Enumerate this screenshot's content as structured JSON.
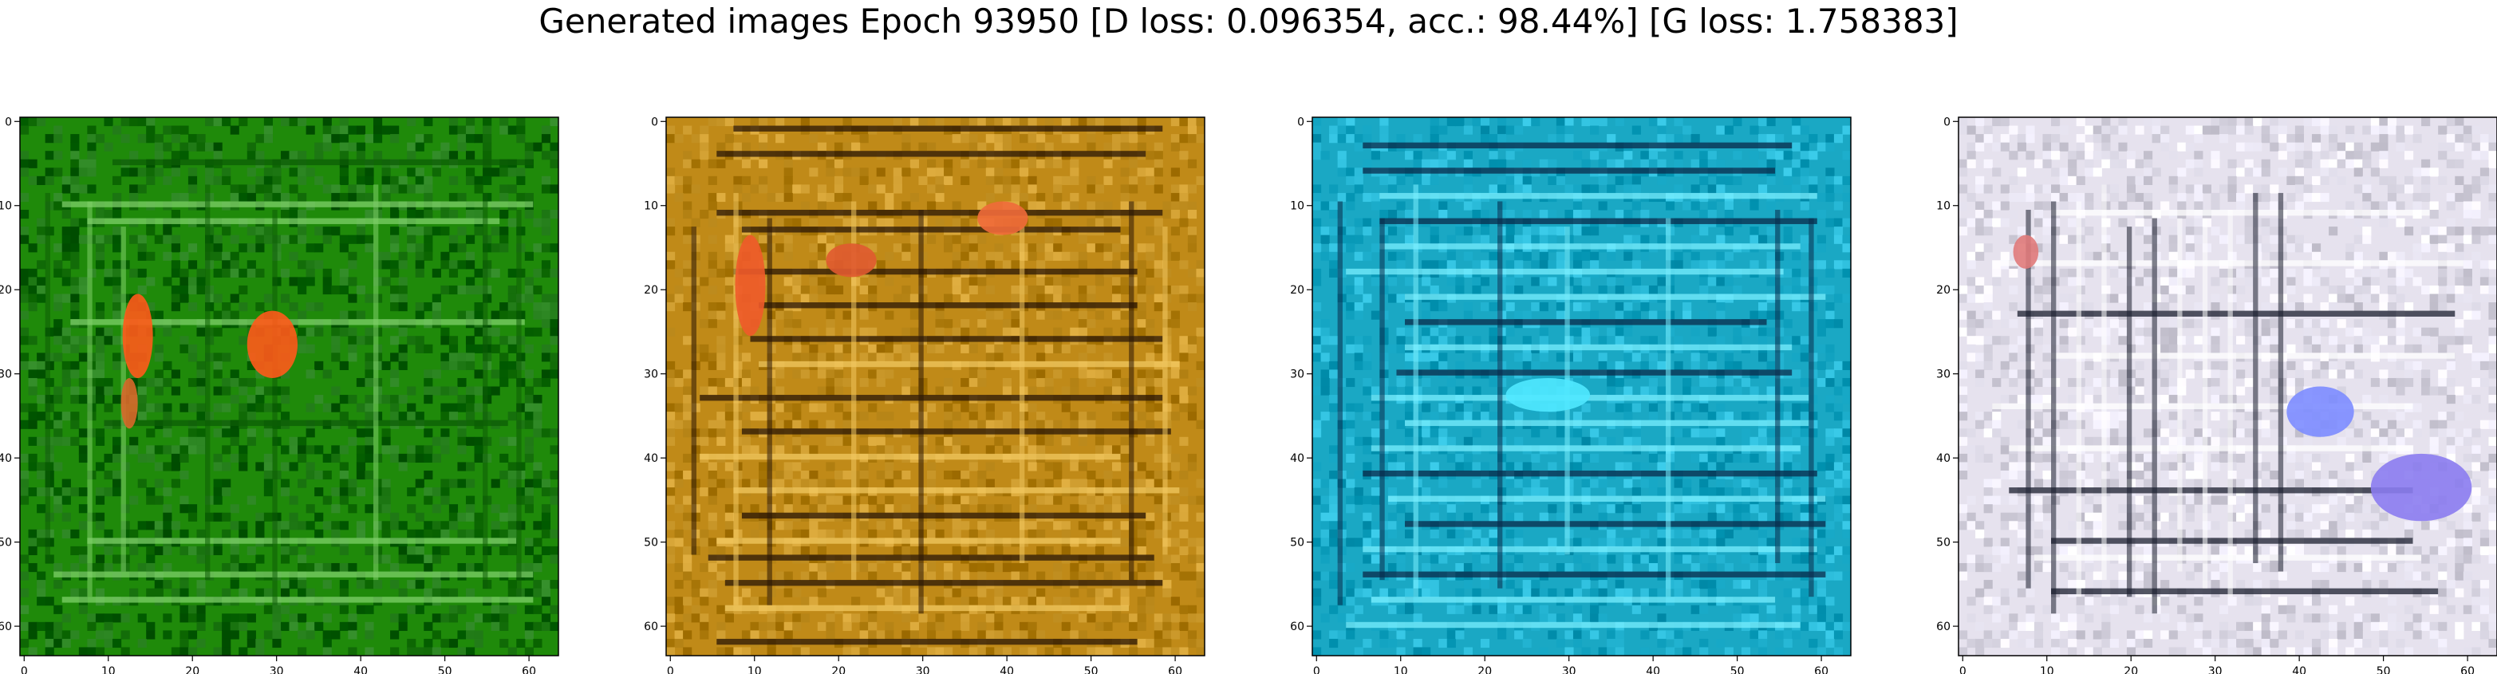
{
  "title": "Generated images Epoch 93950 [D loss: 0.096354, acc.: 98.44%] [G loss: 1.758383]",
  "chart_data": [
    {
      "type": "heatmap",
      "panel": 1,
      "dominant_color": "#1f8a0a",
      "xlim": [
        0,
        63
      ],
      "ylim": [
        63,
        0
      ],
      "xticks": [
        0,
        10,
        20,
        30,
        40,
        50,
        60
      ],
      "yticks": [
        0,
        10,
        20,
        30,
        40,
        50,
        60
      ],
      "grid": false
    },
    {
      "type": "heatmap",
      "panel": 2,
      "dominant_color": "#c08a18",
      "xlim": [
        0,
        63
      ],
      "ylim": [
        63,
        0
      ],
      "xticks": [
        0,
        10,
        20,
        30,
        40,
        50,
        60
      ],
      "yticks": [
        0,
        10,
        20,
        30,
        40,
        50,
        60
      ],
      "grid": false
    },
    {
      "type": "heatmap",
      "panel": 3,
      "dominant_color": "#1aa8c4",
      "xlim": [
        0,
        63
      ],
      "ylim": [
        63,
        0
      ],
      "xticks": [
        0,
        10,
        20,
        30,
        40,
        50,
        60
      ],
      "yticks": [
        0,
        10,
        20,
        30,
        40,
        50,
        60
      ],
      "grid": false
    },
    {
      "type": "heatmap",
      "panel": 4,
      "dominant_color": "#e6e2ee",
      "xlim": [
        0,
        63
      ],
      "ylim": [
        63,
        0
      ],
      "xticks": [
        0,
        10,
        20,
        30,
        40,
        50,
        60
      ],
      "yticks": [
        0,
        10,
        20,
        30,
        40,
        50,
        60
      ],
      "grid": false
    }
  ]
}
